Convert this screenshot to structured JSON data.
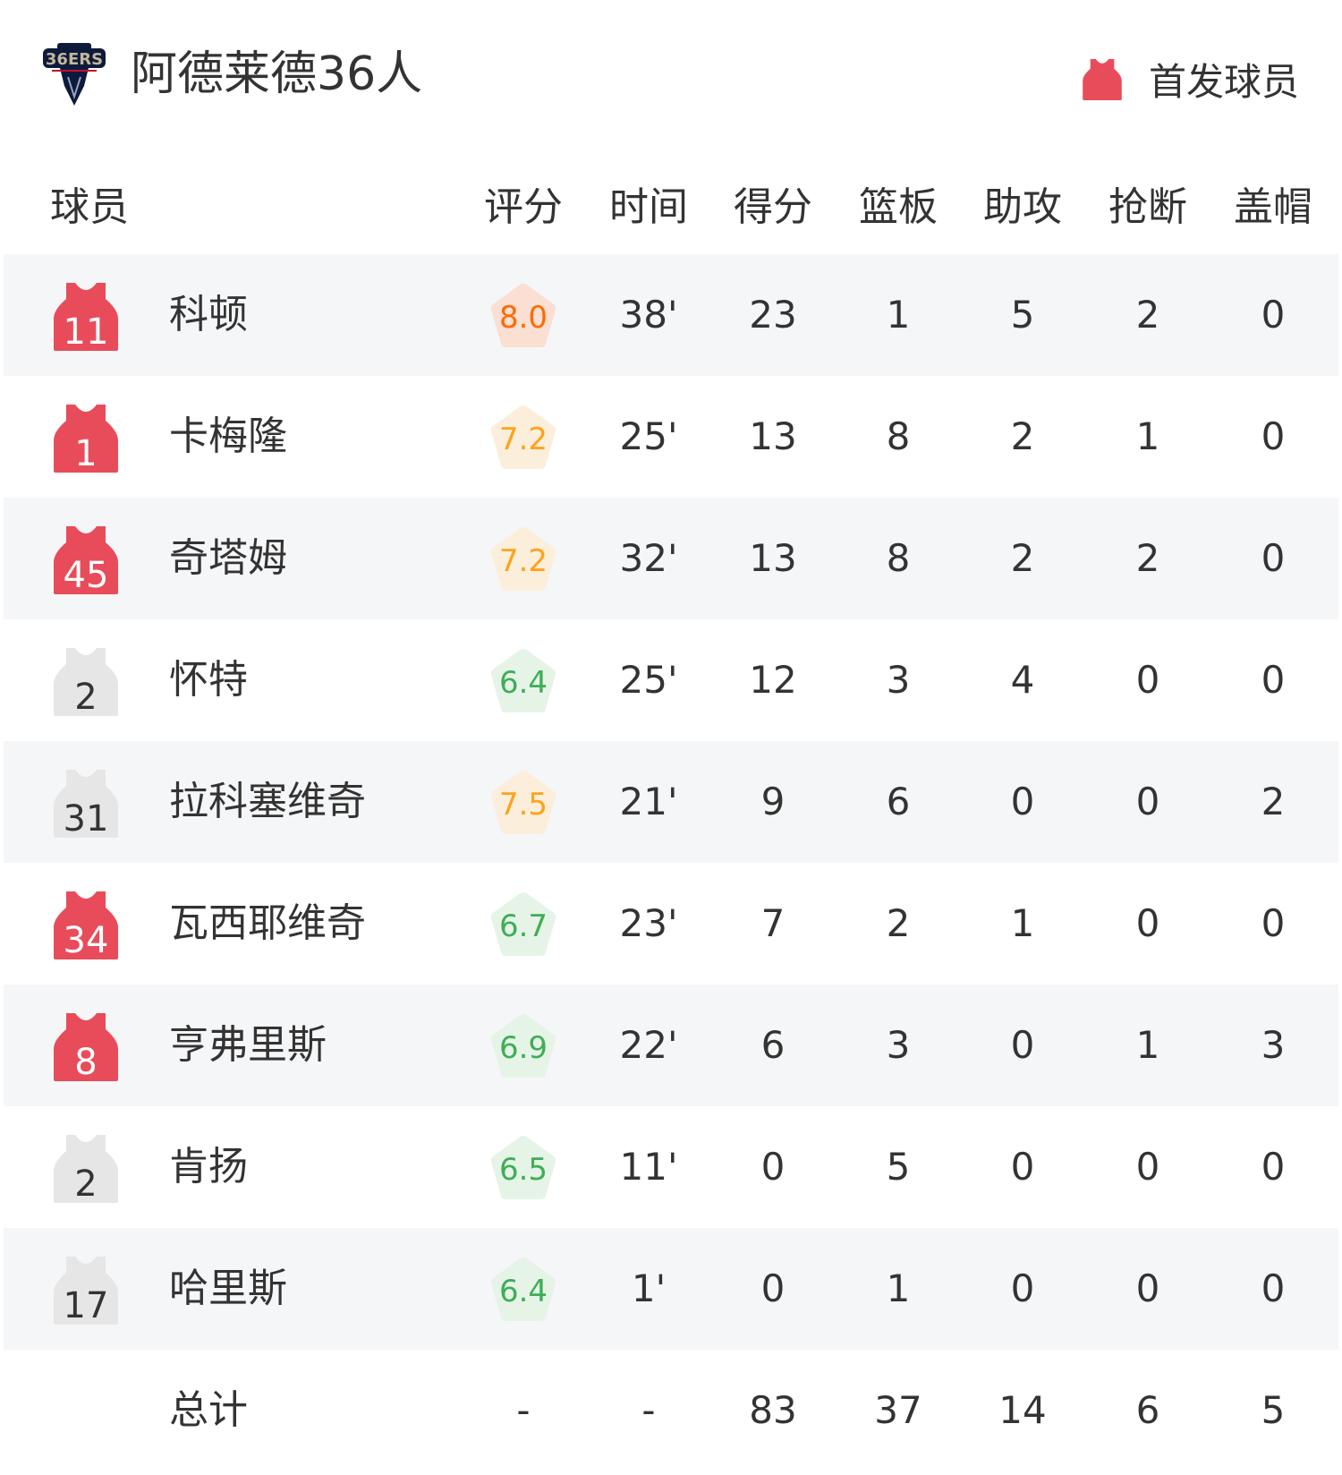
{
  "header": {
    "team_name": "阿德莱德36人",
    "logo_text": "ADELAIDE 36ERS",
    "legend_label": "首发球员",
    "legend_icon": "jersey-icon"
  },
  "colors": {
    "starter": "#e84c5a",
    "bench": "#e6e6e6",
    "rating_high": "#ff6a00",
    "rating_mid": "#ffa21a",
    "rating_low": "#3fae54"
  },
  "columns": [
    "球员",
    "评分",
    "时间",
    "得分",
    "篮板",
    "助攻",
    "抢断",
    "盖帽"
  ],
  "players": [
    {
      "number": "11",
      "name": "科顿",
      "starter": true,
      "rating": "8.0",
      "min": "38'",
      "pts": "23",
      "reb": "1",
      "ast": "5",
      "stl": "2",
      "blk": "0"
    },
    {
      "number": "1",
      "name": "卡梅隆",
      "starter": true,
      "rating": "7.2",
      "min": "25'",
      "pts": "13",
      "reb": "8",
      "ast": "2",
      "stl": "1",
      "blk": "0"
    },
    {
      "number": "45",
      "name": "奇塔姆",
      "starter": true,
      "rating": "7.2",
      "min": "32'",
      "pts": "13",
      "reb": "8",
      "ast": "2",
      "stl": "2",
      "blk": "0"
    },
    {
      "number": "2",
      "name": "怀特",
      "starter": false,
      "rating": "6.4",
      "min": "25'",
      "pts": "12",
      "reb": "3",
      "ast": "4",
      "stl": "0",
      "blk": "0"
    },
    {
      "number": "31",
      "name": "拉科塞维奇",
      "starter": false,
      "rating": "7.5",
      "min": "21'",
      "pts": "9",
      "reb": "6",
      "ast": "0",
      "stl": "0",
      "blk": "2"
    },
    {
      "number": "34",
      "name": "瓦西耶维奇",
      "starter": true,
      "rating": "6.7",
      "min": "23'",
      "pts": "7",
      "reb": "2",
      "ast": "1",
      "stl": "0",
      "blk": "0"
    },
    {
      "number": "8",
      "name": "亨弗里斯",
      "starter": true,
      "rating": "6.9",
      "min": "22'",
      "pts": "6",
      "reb": "3",
      "ast": "0",
      "stl": "1",
      "blk": "3"
    },
    {
      "number": "2",
      "name": "肯扬",
      "starter": false,
      "rating": "6.5",
      "min": "11'",
      "pts": "0",
      "reb": "5",
      "ast": "0",
      "stl": "0",
      "blk": "0"
    },
    {
      "number": "17",
      "name": "哈里斯",
      "starter": false,
      "rating": "6.4",
      "min": "1'",
      "pts": "0",
      "reb": "1",
      "ast": "0",
      "stl": "0",
      "blk": "0"
    }
  ],
  "totals": {
    "label": "总计",
    "rating": "-",
    "min": "-",
    "pts": "83",
    "reb": "37",
    "ast": "14",
    "stl": "6",
    "blk": "5"
  }
}
